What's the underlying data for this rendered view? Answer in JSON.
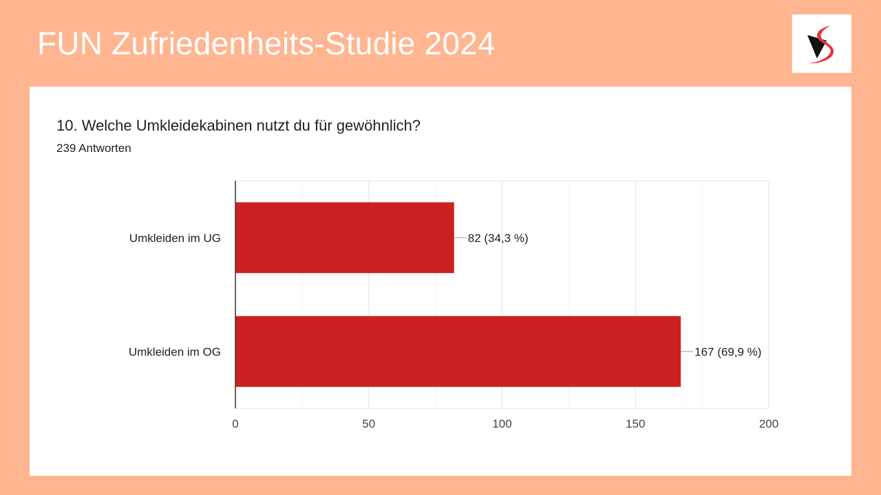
{
  "header": {
    "title": "FUN Zufriedenheits-Studie 2024",
    "logo_icon": "brand-s-logo-icon"
  },
  "question": {
    "text": "10. Welche Umkleidekabinen nutzt du für gewöhnlich?",
    "responses": "239 Antworten"
  },
  "colors": {
    "background": "#ffb690",
    "bar": "#cc2121",
    "card": "#ffffff"
  },
  "chart_data": {
    "type": "bar",
    "orientation": "horizontal",
    "categories": [
      "Umkleiden im UG",
      "Umkleiden im OG"
    ],
    "values": [
      82,
      167
    ],
    "value_labels": [
      "82 (34,3 %)",
      "167 (69,9 %)"
    ],
    "xlim": [
      0,
      200
    ],
    "xticks": [
      "0",
      "50",
      "100",
      "150",
      "200"
    ],
    "grid": true
  }
}
